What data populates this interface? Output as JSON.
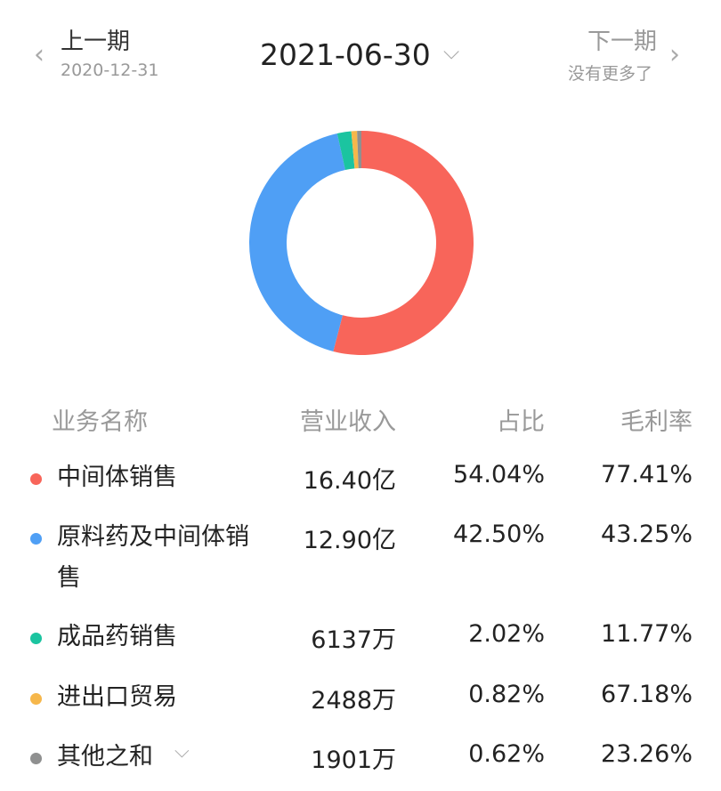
{
  "nav": {
    "prev_label": "上一期",
    "prev_date": "2020-12-31",
    "current_date": "2021-06-30",
    "next_label": "下一期",
    "next_sub": "没有更多了"
  },
  "table": {
    "headers": [
      "业务名称",
      "营业收入",
      "占比",
      "毛利率"
    ]
  },
  "chart_data": {
    "type": "pie",
    "donut": true,
    "categories": [
      "中间体销售",
      "原料药及中间体销售",
      "成品药销售",
      "进出口贸易",
      "其他之和"
    ],
    "values": [
      54.04,
      42.5,
      2.02,
      0.82,
      0.62
    ],
    "colors": [
      "#f8655a",
      "#4f9ff5",
      "#1bc4a0",
      "#f6b74b",
      "#8f9090"
    ],
    "revenue": [
      "16.40亿",
      "12.90亿",
      "6137万",
      "2488万",
      "1901万"
    ],
    "share": [
      "54.04%",
      "42.50%",
      "2.02%",
      "0.82%",
      "0.62%"
    ],
    "margin": [
      "77.41%",
      "43.25%",
      "11.77%",
      "67.18%",
      "23.26%"
    ]
  }
}
